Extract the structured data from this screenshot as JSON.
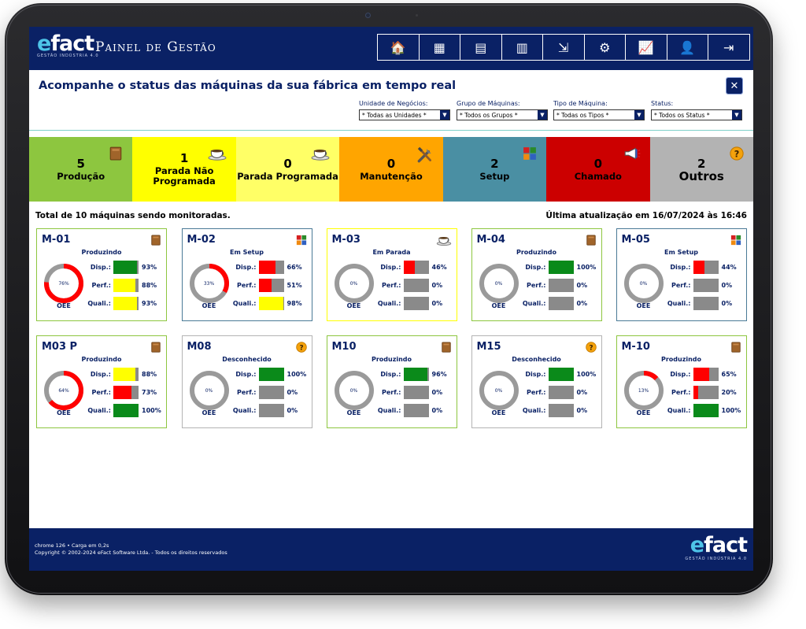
{
  "header": {
    "logo_text": "efact",
    "logo_subtitle": "GESTÃO INDÚSTRIA 4.0",
    "title": "Painel de Gestão",
    "nav": [
      {
        "icon": "home-icon",
        "glyph": "🏠"
      },
      {
        "icon": "grid-icon",
        "glyph": "▦"
      },
      {
        "icon": "report-icon",
        "glyph": "▤"
      },
      {
        "icon": "clipboard-icon",
        "glyph": "▥"
      },
      {
        "icon": "document-export-icon",
        "glyph": "⇲"
      },
      {
        "icon": "settings-icon",
        "glyph": "⚙"
      },
      {
        "icon": "chart-icon",
        "glyph": "📈"
      },
      {
        "icon": "user-icon",
        "glyph": "👤"
      },
      {
        "icon": "logout-icon",
        "glyph": "⇥"
      }
    ]
  },
  "filters": {
    "heading": "Acompanhe o status das máquinas da sua fábrica em tempo real",
    "close_label": "✕",
    "items": [
      {
        "label": "Unidade de Negócios:",
        "value": "* Todas as Unidades *"
      },
      {
        "label": "Grupo de Máquinas:",
        "value": "* Todos os Grupos *"
      },
      {
        "label": "Tipo de Máquina:",
        "value": "* Todas os Tipos *"
      },
      {
        "label": "Status:",
        "value": "* Todos os Status *"
      }
    ]
  },
  "status_tiles": [
    {
      "count": "5",
      "label": "Produção",
      "bg": "#8dc63f",
      "color": "#000000",
      "icon": "box-icon"
    },
    {
      "count": "1",
      "label": "Parada Não Programada",
      "bg": "#ffff00",
      "color": "#000000",
      "icon": "coffee-cup-icon"
    },
    {
      "count": "0",
      "label": "Parada Programada",
      "bg": "#ffff66",
      "color": "#000000",
      "icon": "coffee-cup-icon"
    },
    {
      "count": "0",
      "label": "Manutenção",
      "bg": "#ffa500",
      "color": "#000000",
      "icon": "tools-icon"
    },
    {
      "count": "2",
      "label": "Setup",
      "bg": "#4a8fa3",
      "color": "#000000",
      "icon": "setup-blocks-icon"
    },
    {
      "count": "0",
      "label": "Chamado",
      "bg": "#cc0000",
      "color": "#000000",
      "icon": "megaphone-icon"
    },
    {
      "count": "2",
      "label": "Outros",
      "bg": "#b3b3b3",
      "color": "#000000",
      "icon": "question-icon"
    }
  ],
  "summary": {
    "monitored": "Total de 10 máquinas sendo monitoradas.",
    "last_update": "Última atualização em 16/07/2024 às 16:46"
  },
  "metric_labels": {
    "disp": "Disp.:",
    "perf": "Perf.:",
    "quali": "Quali.:",
    "oee": "OEE"
  },
  "machines": [
    {
      "name": "M-01",
      "state": "Produzindo",
      "border": "#8dc63f",
      "icon": "box-icon",
      "oee": 76,
      "oee_label": "76%",
      "disp": {
        "value": 93,
        "label": "93%",
        "color": "#0a8a1a"
      },
      "perf": {
        "value": 88,
        "label": "88%",
        "color": "#ffff00"
      },
      "quali": {
        "value": 93,
        "label": "93%",
        "color": "#ffff00"
      }
    },
    {
      "name": "M-02",
      "state": "Em Setup",
      "border": "#4a7a96",
      "icon": "setup-blocks-icon",
      "oee": 33,
      "oee_label": "33%",
      "disp": {
        "value": 66,
        "label": "66%",
        "color": "#ff0000"
      },
      "perf": {
        "value": 51,
        "label": "51%",
        "color": "#ff0000"
      },
      "quali": {
        "value": 98,
        "label": "98%",
        "color": "#ffff00"
      }
    },
    {
      "name": "M-03",
      "state": "Em Parada",
      "border": "#ffff00",
      "icon": "coffee-cup-icon",
      "oee": 0,
      "oee_label": "0%",
      "disp": {
        "value": 46,
        "label": "46%",
        "color": "#ff0000"
      },
      "perf": {
        "value": 0,
        "label": "0%",
        "color": "#ff0000"
      },
      "quali": {
        "value": 0,
        "label": "0%",
        "color": "#ff0000"
      }
    },
    {
      "name": "M-04",
      "state": "Produzindo",
      "border": "#8dc63f",
      "icon": "box-icon",
      "oee": 0,
      "oee_label": "0%",
      "disp": {
        "value": 100,
        "label": "100%",
        "color": "#0a8a1a"
      },
      "perf": {
        "value": 0,
        "label": "0%",
        "color": "#ff0000"
      },
      "quali": {
        "value": 0,
        "label": "0%",
        "color": "#ff0000"
      }
    },
    {
      "name": "M-05",
      "state": "Em Setup",
      "border": "#4a7a96",
      "icon": "setup-blocks-icon",
      "oee": 0,
      "oee_label": "0%",
      "disp": {
        "value": 44,
        "label": "44%",
        "color": "#ff0000"
      },
      "perf": {
        "value": 0,
        "label": "0%",
        "color": "#ff0000"
      },
      "quali": {
        "value": 0,
        "label": "0%",
        "color": "#ff0000"
      }
    },
    {
      "name": "M03 P",
      "state": "Produzindo",
      "border": "#8dc63f",
      "icon": "box-icon",
      "oee": 64,
      "oee_label": "64%",
      "disp": {
        "value": 88,
        "label": "88%",
        "color": "#ffff00"
      },
      "perf": {
        "value": 73,
        "label": "73%",
        "color": "#ff0000"
      },
      "quali": {
        "value": 100,
        "label": "100%",
        "color": "#0a8a1a"
      }
    },
    {
      "name": "M08",
      "state": "Desconhecido",
      "border": "#b3b3b3",
      "icon": "question-icon",
      "oee": 0,
      "oee_label": "0%",
      "disp": {
        "value": 100,
        "label": "100%",
        "color": "#0a8a1a"
      },
      "perf": {
        "value": 0,
        "label": "0%",
        "color": "#ff0000"
      },
      "quali": {
        "value": 0,
        "label": "0%",
        "color": "#ff0000"
      }
    },
    {
      "name": "M10",
      "state": "Produzindo",
      "border": "#8dc63f",
      "icon": "box-icon",
      "oee": 0,
      "oee_label": "0%",
      "disp": {
        "value": 96,
        "label": "96%",
        "color": "#0a8a1a"
      },
      "perf": {
        "value": 0,
        "label": "0%",
        "color": "#ff0000"
      },
      "quali": {
        "value": 0,
        "label": "0%",
        "color": "#ff0000"
      }
    },
    {
      "name": "M15",
      "state": "Desconhecido",
      "border": "#b3b3b3",
      "icon": "question-icon",
      "oee": 0,
      "oee_label": "0%",
      "disp": {
        "value": 100,
        "label": "100%",
        "color": "#0a8a1a"
      },
      "perf": {
        "value": 0,
        "label": "0%",
        "color": "#ff0000"
      },
      "quali": {
        "value": 0,
        "label": "0%",
        "color": "#ff0000"
      }
    },
    {
      "name": "M-10",
      "state": "Produzindo",
      "border": "#8dc63f",
      "icon": "box-icon",
      "oee": 13,
      "oee_label": "13%",
      "disp": {
        "value": 65,
        "label": "65%",
        "color": "#ff0000"
      },
      "perf": {
        "value": 20,
        "label": "20%",
        "color": "#ff0000"
      },
      "quali": {
        "value": 100,
        "label": "100%",
        "color": "#0a8a1a"
      }
    }
  ],
  "footer": {
    "line1": "chrome 126 • Carga em 0,2s",
    "line2": "Copyright © 2002-2024 eFact Software Ltda. - Todos os direitos reservados",
    "logo_text": "efact",
    "logo_subtitle": "GESTÃO INDÚSTRIA 4.0"
  }
}
